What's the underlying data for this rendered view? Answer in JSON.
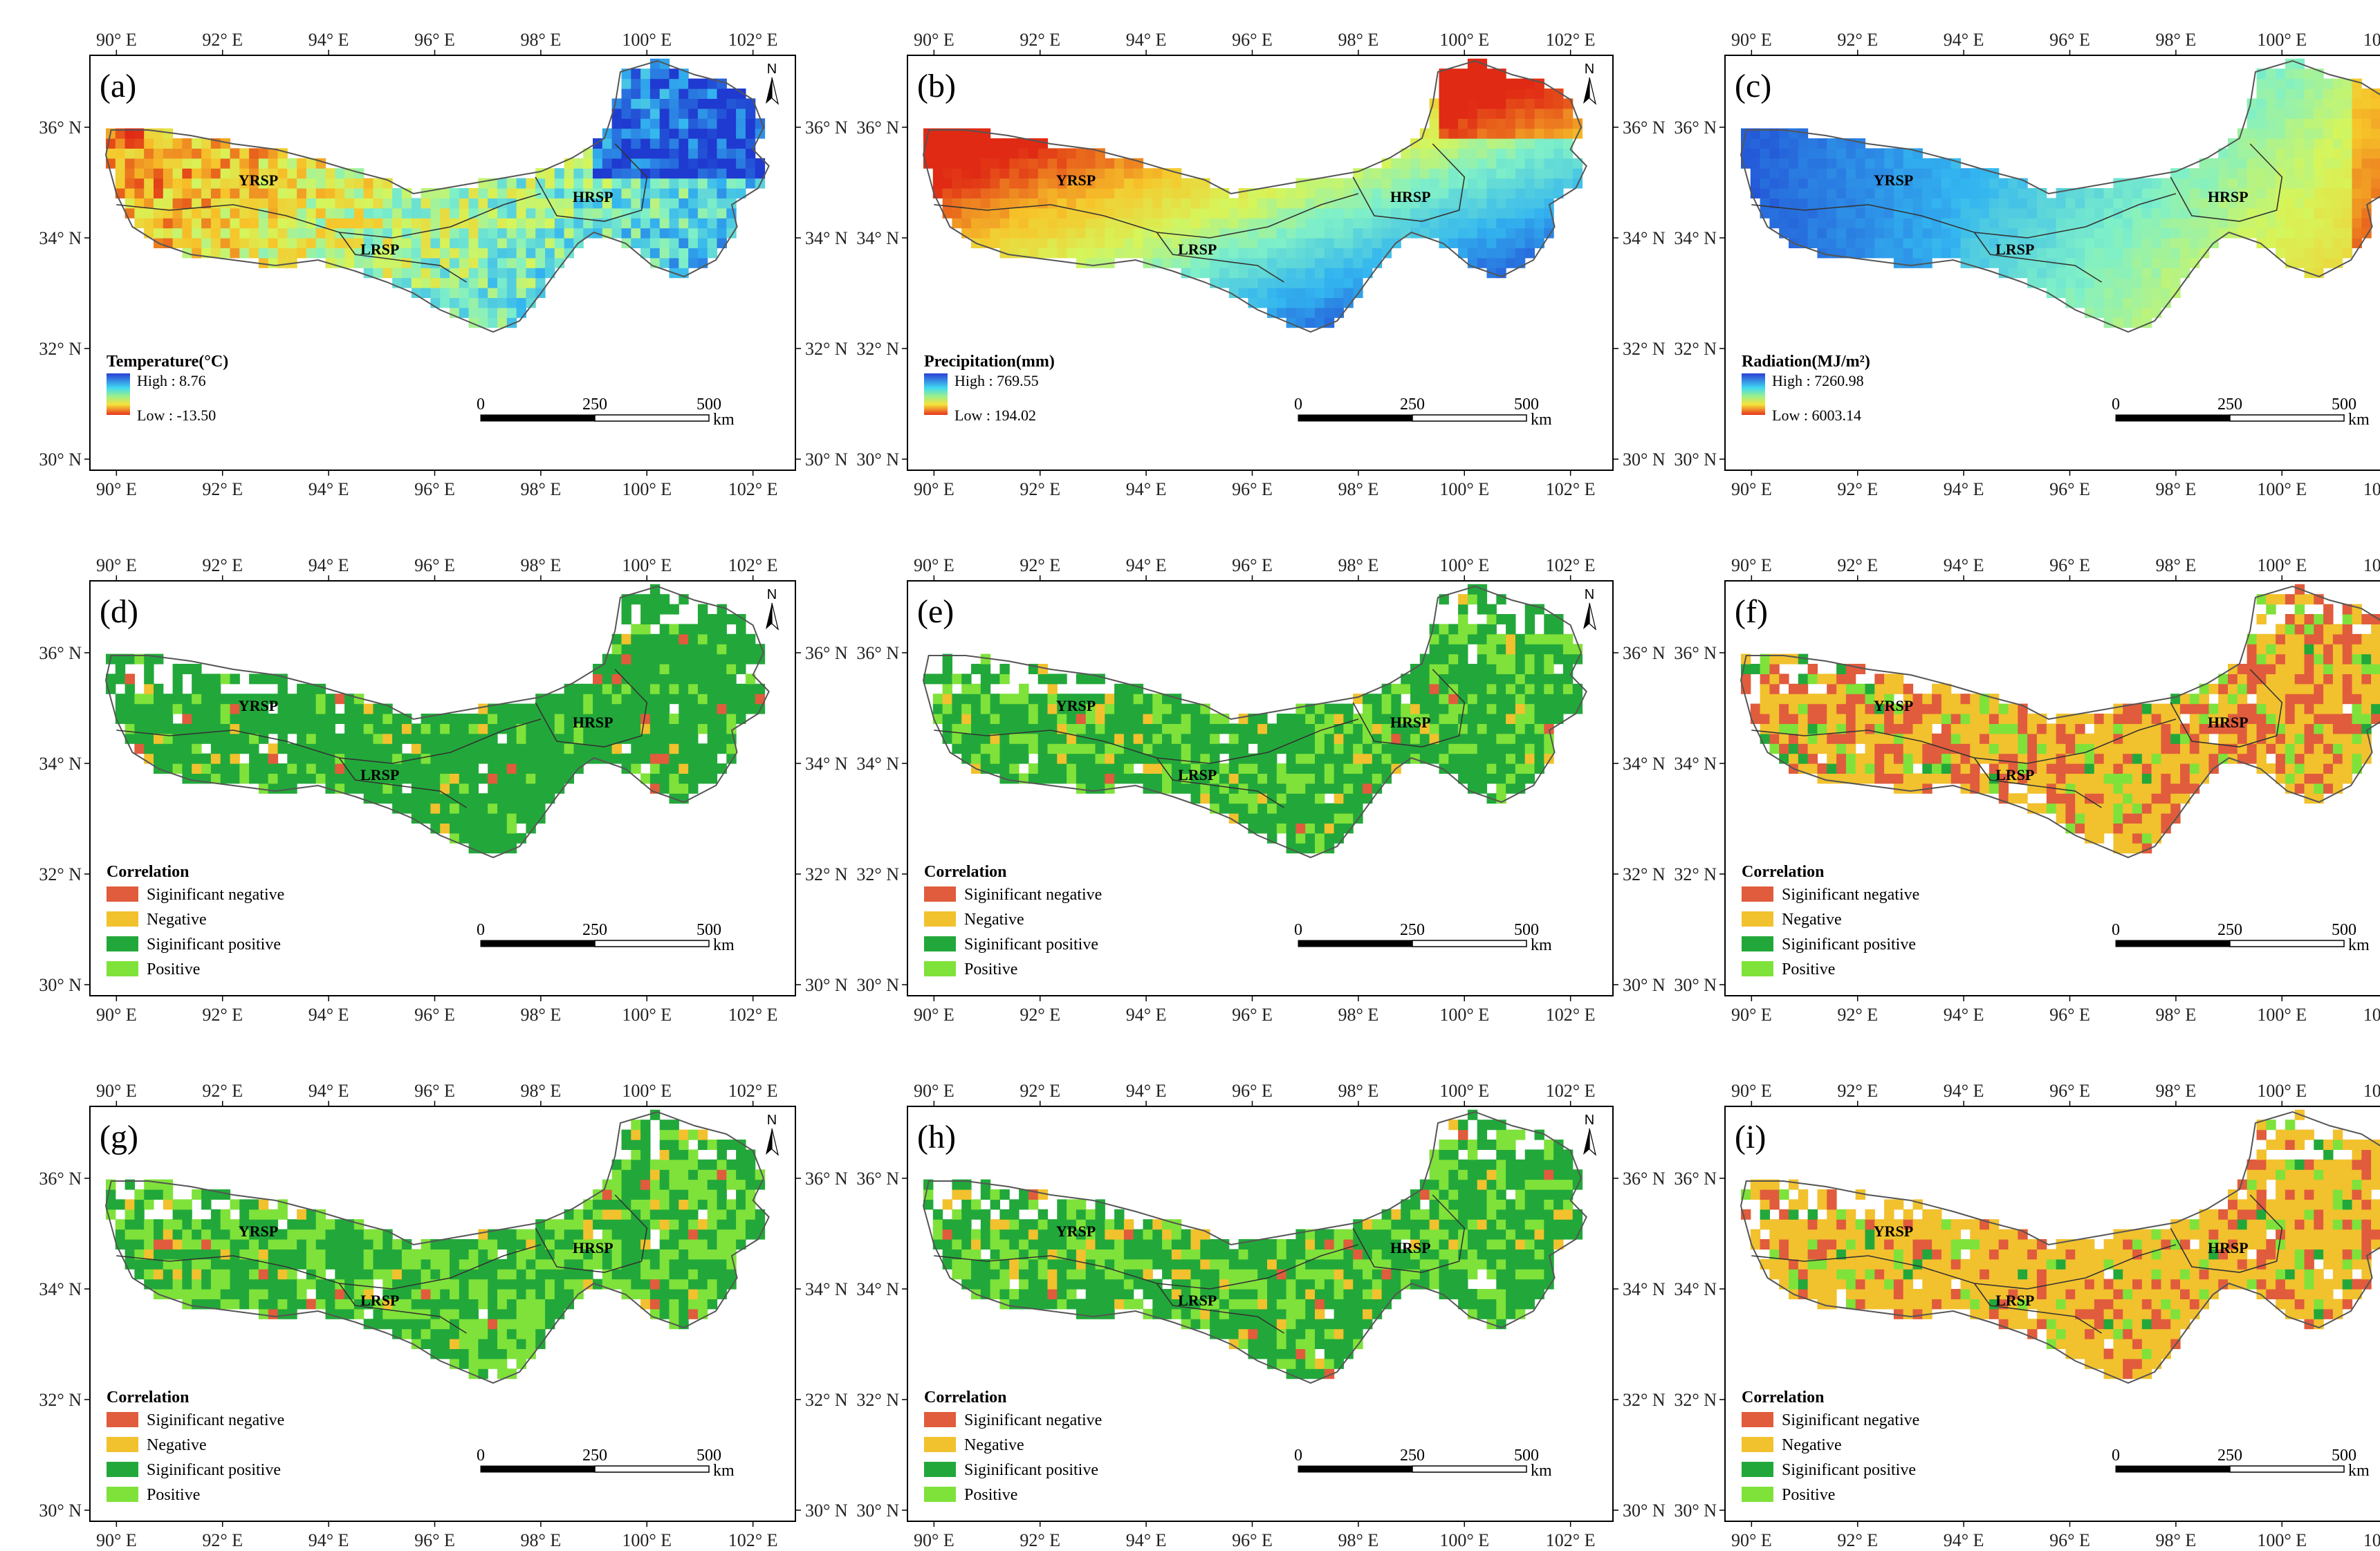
{
  "figure": {
    "lon_labels": [
      "90° E",
      "92° E",
      "94° E",
      "96° E",
      "98° E",
      "100° E",
      "102° E"
    ],
    "lat_labels": [
      "30° N",
      "32° N",
      "34° N",
      "36° N"
    ],
    "regions": [
      "YRSP",
      "LRSP",
      "HRSP"
    ],
    "north_label": "N",
    "scale": {
      "ticks": [
        "0",
        "250",
        "500"
      ],
      "unit": "km"
    },
    "correlation_legend": {
      "title": "Correlation",
      "categories": [
        {
          "label": "Siginificant negative",
          "color": "#e05c3c"
        },
        {
          "label": "Negative",
          "color": "#f2c12e"
        },
        {
          "label": "Siginificant positive",
          "color": "#22a83a"
        },
        {
          "label": "Positive",
          "color": "#7fe23a"
        }
      ]
    }
  },
  "panels": [
    {
      "id": "a",
      "label": "(a)",
      "kind": "continuous",
      "variable": "temperature",
      "legend_title": "Temperature(°C)",
      "high": "High : 8.76",
      "low": "Low : -13.50"
    },
    {
      "id": "b",
      "label": "(b)",
      "kind": "continuous",
      "variable": "precipitation",
      "legend_title": "Precipitation(mm)",
      "high": "High : 769.55",
      "low": "Low : 194.02"
    },
    {
      "id": "c",
      "label": "(c)",
      "kind": "continuous",
      "variable": "radiation",
      "legend_title": "Radiation(MJ/m²)",
      "high": "High : 7260.98",
      "low": "Low : 6003.14"
    },
    {
      "id": "d",
      "label": "(d)",
      "kind": "categorical",
      "mix": [
        0.02,
        0.03,
        0.85,
        0.1
      ]
    },
    {
      "id": "e",
      "label": "(e)",
      "kind": "categorical",
      "mix": [
        0.01,
        0.05,
        0.66,
        0.28
      ]
    },
    {
      "id": "f",
      "label": "(f)",
      "kind": "categorical",
      "mix": [
        0.33,
        0.52,
        0.03,
        0.12
      ]
    },
    {
      "id": "g",
      "label": "(g)",
      "kind": "categorical",
      "mix": [
        0.01,
        0.05,
        0.52,
        0.42
      ]
    },
    {
      "id": "h",
      "label": "(h)",
      "kind": "categorical",
      "mix": [
        0.02,
        0.08,
        0.6,
        0.3
      ]
    },
    {
      "id": "i",
      "label": "(i)",
      "kind": "categorical",
      "mix": [
        0.18,
        0.68,
        0.04,
        0.1
      ]
    }
  ]
}
